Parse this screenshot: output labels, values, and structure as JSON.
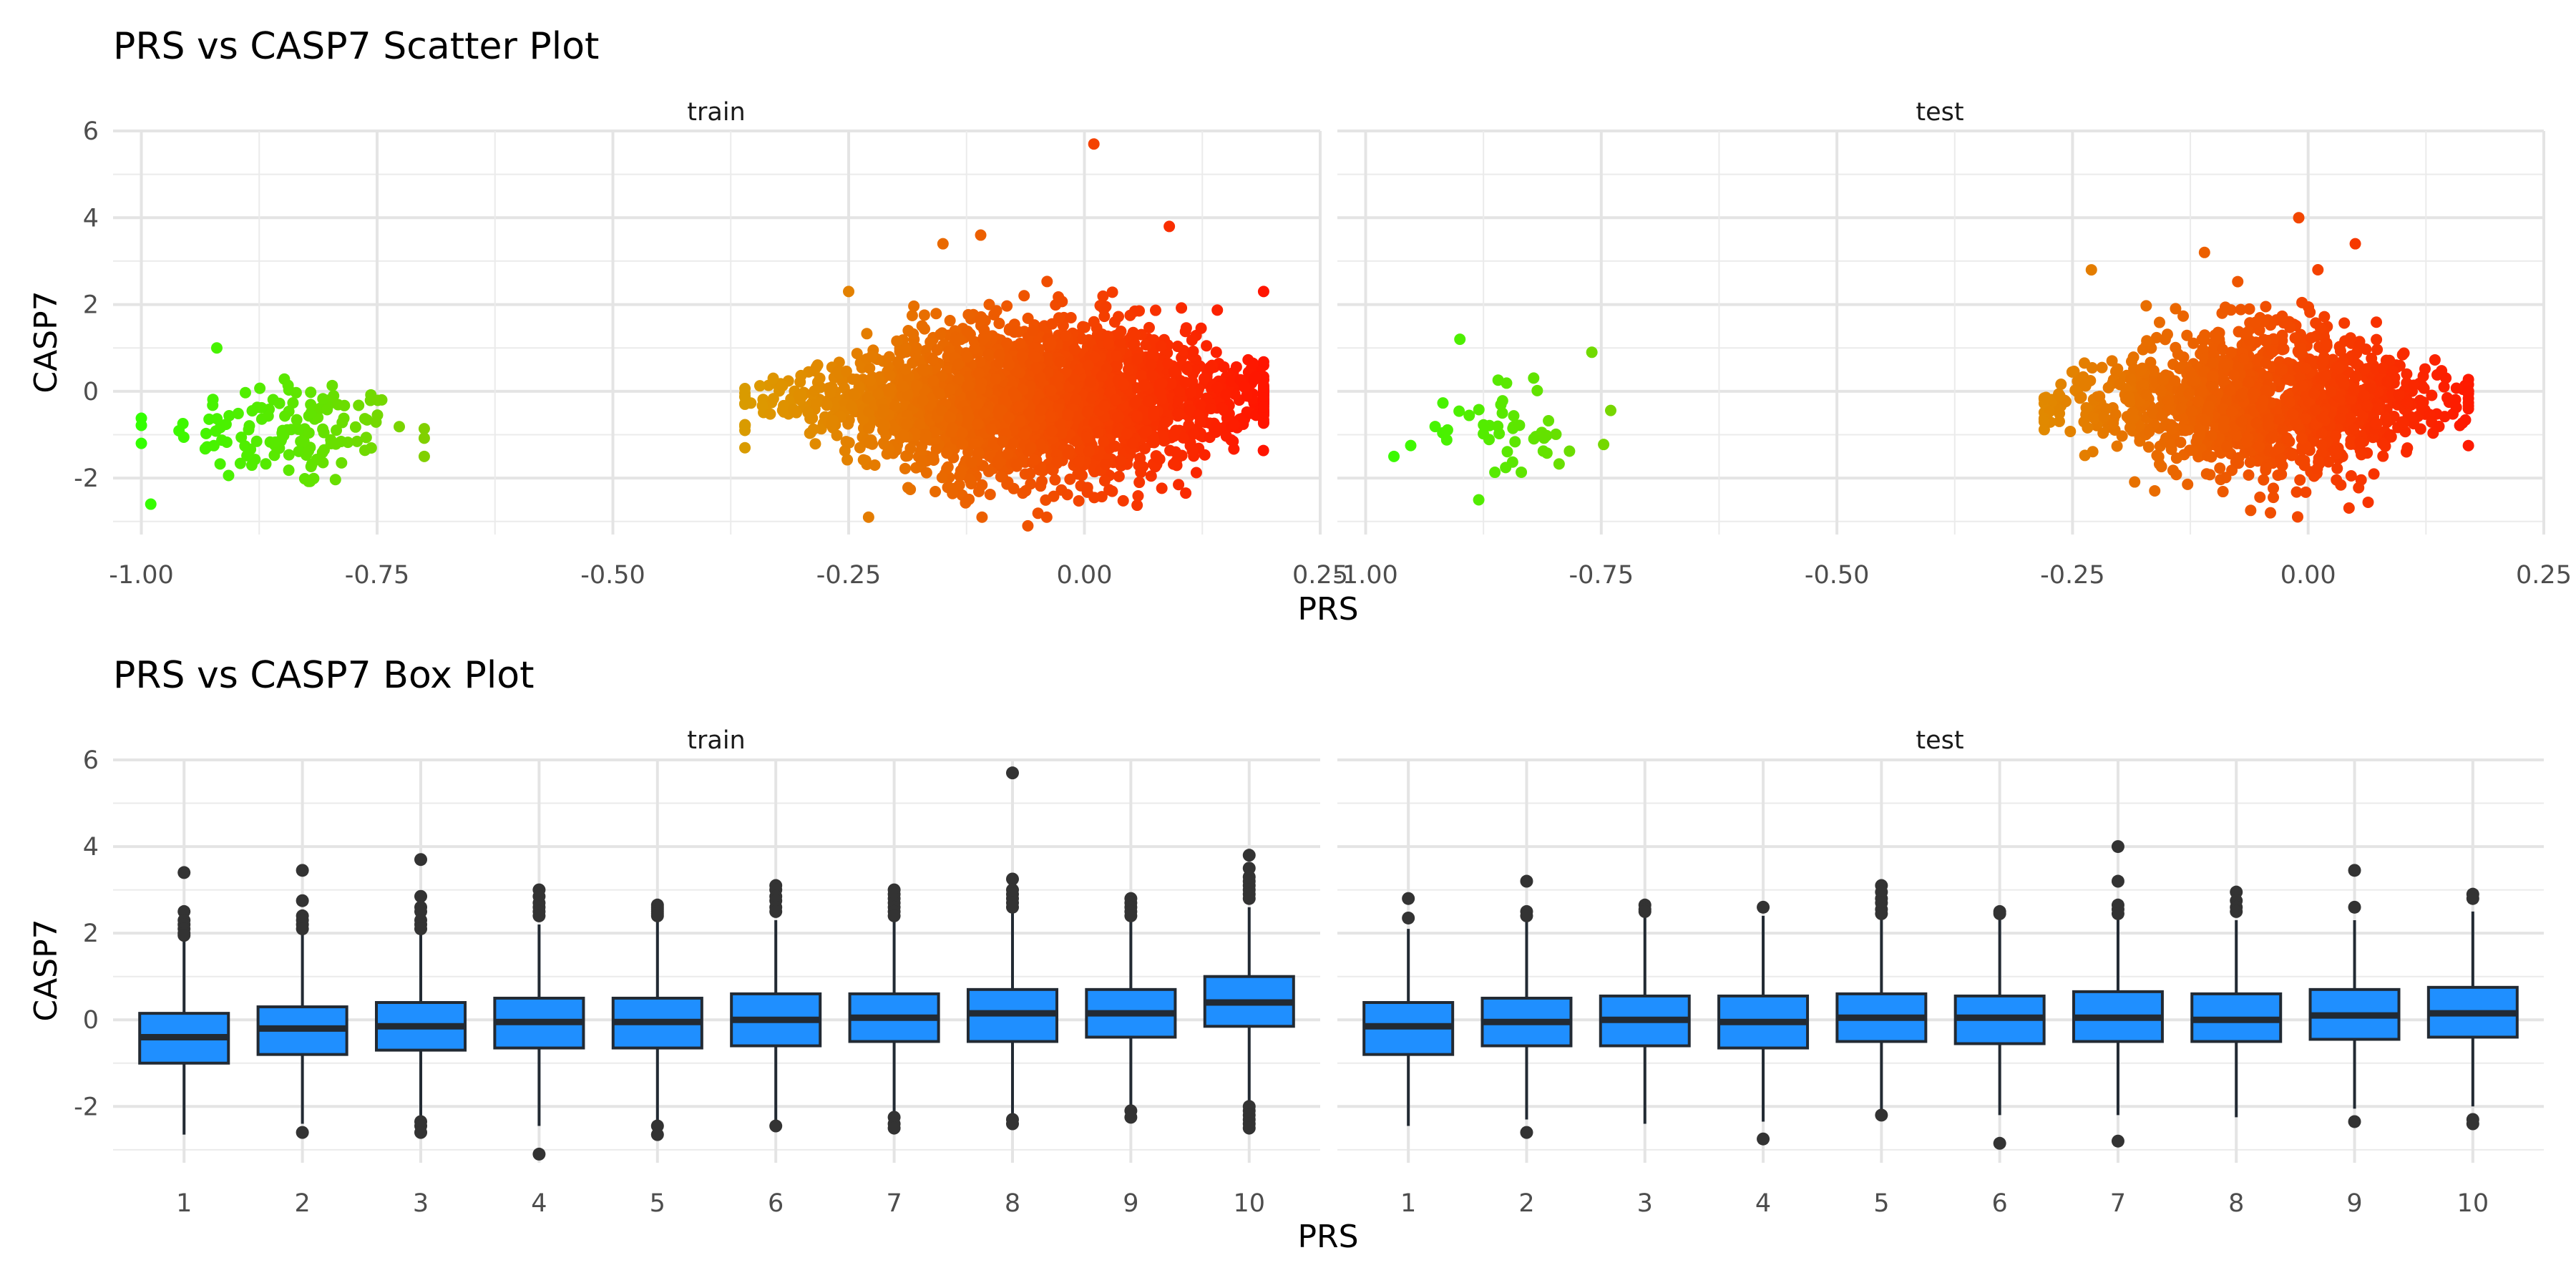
{
  "chart_data": [
    {
      "type": "scatter",
      "title": "PRS vs CASP7 Scatter Plot",
      "xlabel": "PRS",
      "ylabel": "CASP7",
      "facets": [
        "train",
        "test"
      ],
      "xlim": [
        -1.03,
        0.25
      ],
      "ylim": [
        -3.3,
        6
      ],
      "x_ticks": [
        -1.0,
        -0.75,
        -0.5,
        -0.25,
        0.0,
        0.25
      ],
      "x_tick_labels": [
        "-1.00",
        "-0.75",
        "-0.50",
        "-0.25",
        "0.00",
        "0.25"
      ],
      "y_ticks": [
        -2,
        0,
        2,
        4,
        6
      ],
      "y_tick_labels": [
        "-2",
        "0",
        "2",
        "4",
        "6"
      ],
      "grid": true,
      "color_scale": {
        "low_value": -1.0,
        "high_value": 0.19,
        "low": "#33ff00",
        "mid": "#dd9900",
        "high": "#ff1500"
      },
      "series": [
        {
          "name": "train",
          "clusters": [
            {
              "x_range": [
                -1.0,
                -0.7
              ],
              "center": [
                -0.84,
                -0.9
              ],
              "y_sd": 0.7,
              "count": 130
            },
            {
              "x_range": [
                -0.36,
                0.19
              ],
              "center": [
                -0.05,
                -0.2
              ],
              "y_sd": 0.95,
              "count": 2500
            }
          ],
          "points": [
            [
              0.01,
              5.7
            ],
            [
              -0.11,
              3.6
            ],
            [
              -0.15,
              3.4
            ],
            [
              0.09,
              3.8
            ],
            [
              -0.25,
              2.3
            ],
            [
              0.19,
              2.3
            ],
            [
              -0.06,
              -3.1
            ],
            [
              -0.33,
              0.3
            ],
            [
              -0.36,
              -1.3
            ],
            [
              -0.99,
              -2.6
            ],
            [
              -1.0,
              -1.2
            ],
            [
              -0.92,
              1.0
            ],
            [
              -0.7,
              -1.5
            ]
          ]
        },
        {
          "name": "test",
          "clusters": [
            {
              "x_range": [
                -0.98,
                -0.74
              ],
              "center": [
                -0.85,
                -0.9
              ],
              "y_sd": 0.65,
              "count": 45
            },
            {
              "x_range": [
                -0.28,
                0.17
              ],
              "center": [
                -0.05,
                -0.2
              ],
              "y_sd": 0.9,
              "count": 1300
            }
          ],
          "points": [
            [
              -0.01,
              4.0
            ],
            [
              -0.11,
              3.2
            ],
            [
              0.05,
              3.4
            ],
            [
              -0.23,
              2.8
            ],
            [
              -0.9,
              1.2
            ],
            [
              -0.76,
              0.9
            ],
            [
              -0.97,
              -1.5
            ],
            [
              -0.04,
              -2.8
            ],
            [
              0.17,
              0.0
            ],
            [
              -0.28,
              -0.7
            ],
            [
              -0.88,
              -2.5
            ]
          ]
        }
      ]
    },
    {
      "type": "box",
      "title": "PRS vs CASP7 Box Plot",
      "xlabel": "PRS",
      "ylabel": "CASP7",
      "facets": [
        "train",
        "test"
      ],
      "categories": [
        "1",
        "2",
        "3",
        "4",
        "5",
        "6",
        "7",
        "8",
        "9",
        "10"
      ],
      "ylim": [
        -3.3,
        6
      ],
      "y_ticks": [
        -2,
        0,
        2,
        4,
        6
      ],
      "y_tick_labels": [
        "-2",
        "0",
        "2",
        "4",
        "6"
      ],
      "grid": true,
      "box_fill": "#1f8fff",
      "box_outline": "#222a33",
      "series": [
        {
          "name": "train",
          "boxes": [
            {
              "q1": -1.0,
              "median": -0.4,
              "q3": 0.15,
              "whisker_low": -2.65,
              "whisker_high": 1.85,
              "outliers": [
                3.4,
                2.5,
                2.3,
                2.2,
                2.1,
                2.0,
                1.95
              ]
            },
            {
              "q1": -0.8,
              "median": -0.2,
              "q3": 0.3,
              "whisker_low": -2.4,
              "whisker_high": 2.0,
              "outliers": [
                3.45,
                2.75,
                2.4,
                2.3,
                2.2,
                2.1,
                -2.6
              ]
            },
            {
              "q1": -0.7,
              "median": -0.15,
              "q3": 0.4,
              "whisker_low": -2.3,
              "whisker_high": 2.0,
              "outliers": [
                3.7,
                2.85,
                2.6,
                2.5,
                2.3,
                2.2,
                2.1,
                -2.35,
                -2.45,
                -2.6
              ]
            },
            {
              "q1": -0.65,
              "median": -0.05,
              "q3": 0.5,
              "whisker_low": -2.45,
              "whisker_high": 2.2,
              "outliers": [
                3.0,
                2.85,
                2.7,
                2.6,
                2.5,
                2.4,
                -3.1
              ]
            },
            {
              "q1": -0.65,
              "median": -0.05,
              "q3": 0.5,
              "whisker_low": -2.35,
              "whisker_high": 2.3,
              "outliers": [
                2.65,
                2.6,
                2.55,
                2.5,
                2.45,
                2.4,
                -2.45,
                -2.65
              ]
            },
            {
              "q1": -0.6,
              "median": 0.0,
              "q3": 0.6,
              "whisker_low": -2.35,
              "whisker_high": 2.3,
              "outliers": [
                3.1,
                3.0,
                2.85,
                2.75,
                2.6,
                2.5,
                -2.45
              ]
            },
            {
              "q1": -0.5,
              "median": 0.05,
              "q3": 0.6,
              "whisker_low": -2.2,
              "whisker_high": 2.3,
              "outliers": [
                3.0,
                2.9,
                2.8,
                2.7,
                2.6,
                2.5,
                2.4,
                -2.25,
                -2.4,
                -2.5
              ]
            },
            {
              "q1": -0.5,
              "median": 0.15,
              "q3": 0.7,
              "whisker_low": -2.2,
              "whisker_high": 2.5,
              "outliers": [
                5.7,
                3.25,
                3.0,
                2.9,
                2.8,
                2.7,
                2.6,
                -2.3,
                -2.4
              ]
            },
            {
              "q1": -0.4,
              "median": 0.15,
              "q3": 0.7,
              "whisker_low": -2.0,
              "whisker_high": 2.3,
              "outliers": [
                2.8,
                2.7,
                2.6,
                2.5,
                2.4,
                -2.1,
                -2.25
              ]
            },
            {
              "q1": -0.15,
              "median": 0.4,
              "q3": 1.0,
              "whisker_low": -1.9,
              "whisker_high": 2.6,
              "outliers": [
                3.8,
                3.5,
                3.3,
                3.2,
                3.1,
                3.0,
                2.9,
                2.8,
                -2.0,
                -2.1,
                -2.2,
                -2.3,
                -2.4,
                -2.5
              ]
            }
          ]
        },
        {
          "name": "test",
          "boxes": [
            {
              "q1": -0.8,
              "median": -0.15,
              "q3": 0.4,
              "whisker_low": -2.45,
              "whisker_high": 2.1,
              "outliers": [
                2.8,
                2.35
              ]
            },
            {
              "q1": -0.6,
              "median": -0.05,
              "q3": 0.5,
              "whisker_low": -2.3,
              "whisker_high": 2.3,
              "outliers": [
                3.2,
                2.5,
                2.4,
                -2.6
              ]
            },
            {
              "q1": -0.6,
              "median": 0.0,
              "q3": 0.55,
              "whisker_low": -2.4,
              "whisker_high": 2.4,
              "outliers": [
                2.65,
                2.55,
                2.5
              ]
            },
            {
              "q1": -0.65,
              "median": -0.05,
              "q3": 0.55,
              "whisker_low": -2.35,
              "whisker_high": 2.4,
              "outliers": [
                2.6,
                -2.75
              ]
            },
            {
              "q1": -0.5,
              "median": 0.05,
              "q3": 0.6,
              "whisker_low": -2.15,
              "whisker_high": 2.35,
              "outliers": [
                3.1,
                2.95,
                2.8,
                2.7,
                2.55,
                2.45,
                -2.2
              ]
            },
            {
              "q1": -0.55,
              "median": 0.05,
              "q3": 0.55,
              "whisker_low": -2.2,
              "whisker_high": 2.4,
              "outliers": [
                2.5,
                2.45,
                -2.85
              ]
            },
            {
              "q1": -0.5,
              "median": 0.05,
              "q3": 0.65,
              "whisker_low": -2.2,
              "whisker_high": 2.4,
              "outliers": [
                4.0,
                3.2,
                2.65,
                2.55,
                2.45,
                -2.8
              ]
            },
            {
              "q1": -0.5,
              "median": 0.0,
              "q3": 0.6,
              "whisker_low": -2.25,
              "whisker_high": 2.3,
              "outliers": [
                2.95,
                2.75,
                2.6,
                2.5
              ]
            },
            {
              "q1": -0.45,
              "median": 0.1,
              "q3": 0.7,
              "whisker_low": -2.05,
              "whisker_high": 2.3,
              "outliers": [
                3.45,
                2.6,
                -2.35
              ]
            },
            {
              "q1": -0.4,
              "median": 0.15,
              "q3": 0.75,
              "whisker_low": -2.0,
              "whisker_high": 2.5,
              "outliers": [
                2.9,
                2.8,
                -2.3,
                -2.4
              ]
            }
          ]
        }
      ]
    }
  ]
}
